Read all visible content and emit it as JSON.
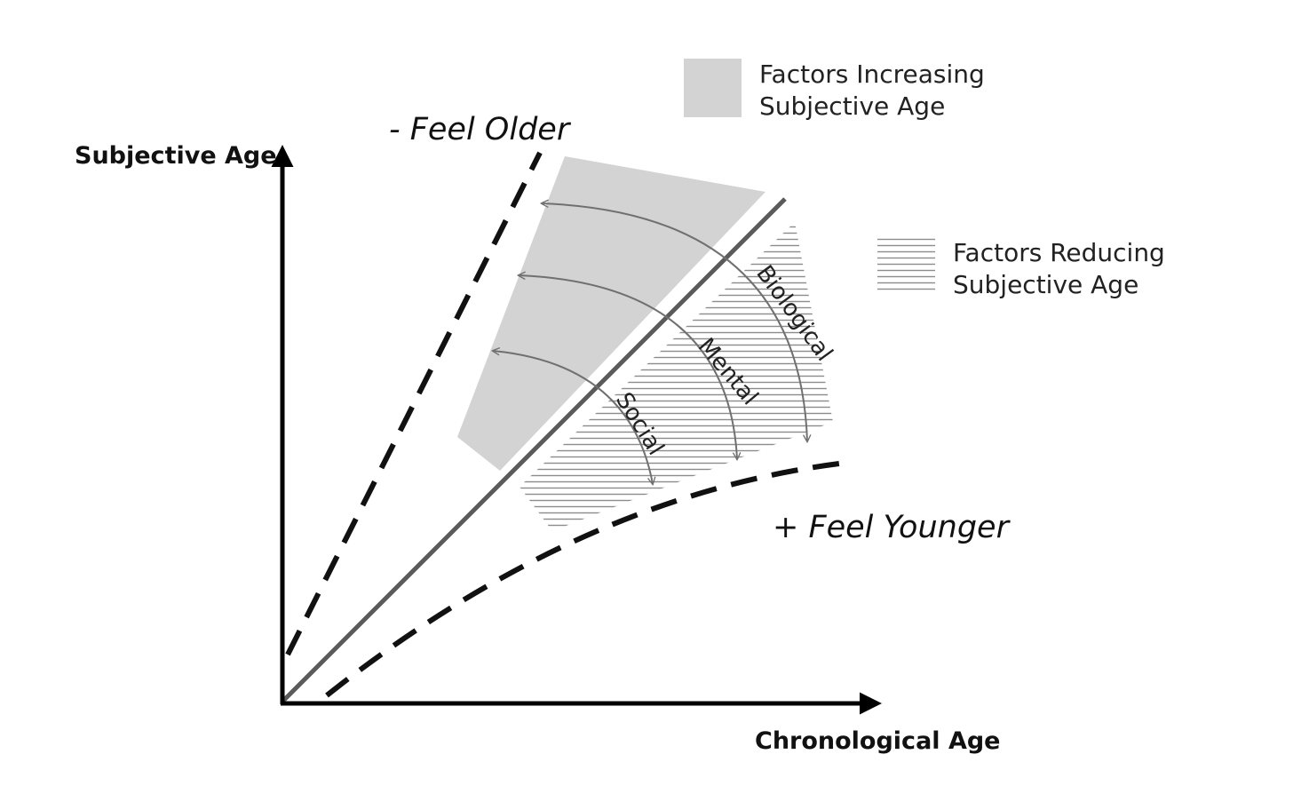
{
  "axes": {
    "y_label": "Subjective Age",
    "x_label": "Chronological Age"
  },
  "zones": {
    "older": "- Feel Older",
    "younger": "+ Feel Younger"
  },
  "legend": {
    "increasing": {
      "line1": "Factors Increasing",
      "line2": "Subjective Age",
      "fill": "#d3d3d3"
    },
    "reducing": {
      "line1": "Factors Reducing",
      "line2": "Subjective Age",
      "stroke": "#8c8c8c"
    }
  },
  "factors": [
    "Social",
    "Mental",
    "Biological"
  ],
  "colors": {
    "axis": "#000000",
    "diagonal": "#5a5a5a",
    "boundary": "#111111",
    "arrow": "#707070"
  }
}
